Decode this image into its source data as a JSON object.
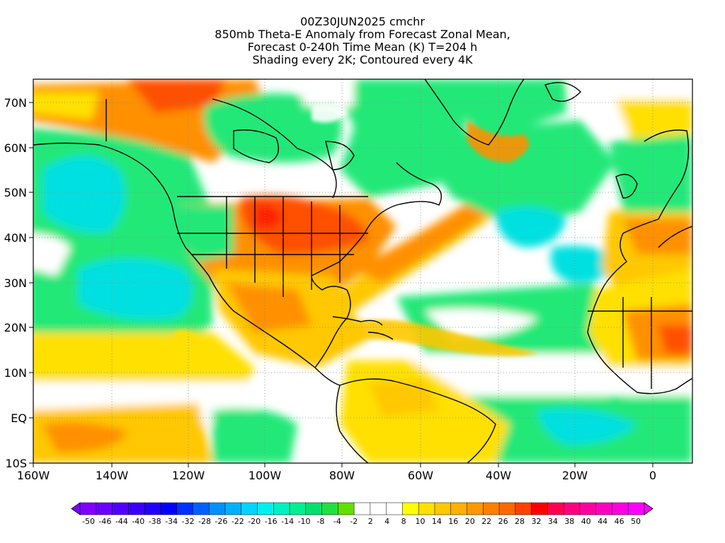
{
  "title": {
    "lines": [
      "00Z30JUN2025 cmchr",
      "850mb Theta-E Anomaly from Forecast Zonal Mean,",
      "Forecast 0-240h Time Mean (K) T=204 h",
      "Shading every 2K; Contoured every 4K"
    ]
  },
  "axes": {
    "lat_labels": [
      "70N",
      "60N",
      "50N",
      "40N",
      "30N",
      "20N",
      "10N",
      "EQ",
      "10S"
    ],
    "lon_labels": [
      "160W",
      "140W",
      "120W",
      "100W",
      "80W",
      "60W",
      "40W",
      "20W",
      "0"
    ]
  },
  "colorbar": {
    "labels": [
      "-50",
      "-46",
      "-44",
      "-40",
      "-38",
      "-34",
      "-32",
      "-28",
      "-26",
      "-22",
      "-20",
      "-16",
      "-14",
      "-10",
      "-8",
      "-4",
      "-2",
      "2",
      "4",
      "8",
      "10",
      "14",
      "16",
      "20",
      "22",
      "26",
      "28",
      "32",
      "34",
      "38",
      "40",
      "44",
      "46",
      "50"
    ],
    "colors": [
      "#7f00ff",
      "#6a00ff",
      "#5000ff",
      "#3a00ff",
      "#2000ff",
      "#0000ff",
      "#0030ff",
      "#0060ff",
      "#0090ff",
      "#00b0ff",
      "#00d4ff",
      "#00f0f0",
      "#00f0c0",
      "#00f090",
      "#00e070",
      "#20e040",
      "#60e000",
      "#ffffff",
      "#ffffff",
      "#ffffff",
      "#ffff00",
      "#ffe000",
      "#ffc800",
      "#ffb000",
      "#ff9800",
      "#ff8000",
      "#ff6800",
      "#ff4000",
      "#ff0000",
      "#ff0050",
      "#ff0080",
      "#ff00a0",
      "#ff00c0",
      "#ff00e0",
      "#ff00ff"
    ]
  },
  "map_colors": {
    "ocean_green": "#20e878",
    "cyan": "#00e0e0",
    "aqua": "#40f0c0",
    "white": "#ffffff",
    "yellow": "#ffff00",
    "gold": "#ffc800",
    "orange": "#ff9000",
    "red_orange": "#ff5000",
    "red": "#ff2000",
    "magenta": "#ff0060"
  }
}
